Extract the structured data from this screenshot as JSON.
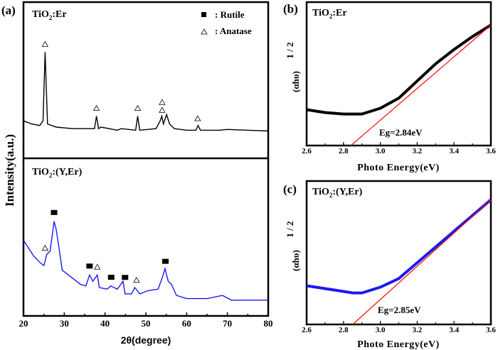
{
  "chart_data": [
    {
      "type": "line",
      "panel_label": "(a)",
      "xlabel": "2θ(degree)",
      "ylabel": "Intensity(a.u.)",
      "xlim": [
        20,
        80
      ],
      "xticks": [
        "20",
        "30",
        "40",
        "50",
        "60",
        "70",
        "80"
      ],
      "legend": {
        "position": "top-right",
        "entries": [
          {
            "symbol": "filled-square",
            "label": ": Rutile"
          },
          {
            "symbol": "open-triangle",
            "label": ": Anatase"
          }
        ]
      },
      "subplots": [
        {
          "name_main": "TiO",
          "name_sub": "2",
          "name_rest": ":Er",
          "color": "#000000",
          "points": [
            [
              20,
              0.24
            ],
            [
              22,
              0.22
            ],
            [
              24,
              0.21
            ],
            [
              24.8,
              0.24
            ],
            [
              25.1,
              0.5
            ],
            [
              25.3,
              0.68
            ],
            [
              25.6,
              0.45
            ],
            [
              25.9,
              0.22
            ],
            [
              28,
              0.2
            ],
            [
              32,
              0.19
            ],
            [
              37.4,
              0.19
            ],
            [
              37.9,
              0.27
            ],
            [
              38.4,
              0.19
            ],
            [
              39,
              0.2
            ],
            [
              43,
              0.18
            ],
            [
              44,
              0.19
            ],
            [
              47.5,
              0.18
            ],
            [
              48,
              0.27
            ],
            [
              48.5,
              0.18
            ],
            [
              52.5,
              0.19
            ],
            [
              53.5,
              0.24
            ],
            [
              53.9,
              0.27
            ],
            [
              54.3,
              0.22
            ],
            [
              55.1,
              0.28
            ],
            [
              55.8,
              0.22
            ],
            [
              57,
              0.19
            ],
            [
              60,
              0.18
            ],
            [
              62.3,
              0.18
            ],
            [
              62.8,
              0.21
            ],
            [
              63.4,
              0.18
            ],
            [
              68,
              0.18
            ],
            [
              70,
              0.185
            ],
            [
              75,
              0.18
            ],
            [
              80,
              0.175
            ]
          ],
          "anatase_markers": [
            25.3,
            37.9,
            48.0,
            54.0,
            54.0,
            62.7
          ],
          "rutile_markers": []
        },
        {
          "name_main": "TiO",
          "name_sub": "2",
          "name_rest": ":(Y,Er)",
          "color": "#1a1aee",
          "points": [
            [
              20,
              0.48
            ],
            [
              21,
              0.44
            ],
            [
              22.5,
              0.38
            ],
            [
              24,
              0.34
            ],
            [
              25,
              0.32
            ],
            [
              25.7,
              0.39
            ],
            [
              26.5,
              0.41
            ],
            [
              27.1,
              0.52
            ],
            [
              27.5,
              0.6
            ],
            [
              28,
              0.55
            ],
            [
              28.5,
              0.47
            ],
            [
              29.5,
              0.29
            ],
            [
              31,
              0.26
            ],
            [
              32.5,
              0.23
            ],
            [
              34,
              0.2
            ],
            [
              35.3,
              0.19
            ],
            [
              36.2,
              0.26
            ],
            [
              37,
              0.22
            ],
            [
              38.1,
              0.26
            ],
            [
              38.6,
              0.18
            ],
            [
              40.5,
              0.17
            ],
            [
              41.4,
              0.19
            ],
            [
              43,
              0.17
            ],
            [
              44.4,
              0.22
            ],
            [
              44.9,
              0.14
            ],
            [
              46.5,
              0.14
            ],
            [
              47.3,
              0.18
            ],
            [
              48.5,
              0.14
            ],
            [
              50.5,
              0.16
            ],
            [
              53,
              0.17
            ],
            [
              54,
              0.24
            ],
            [
              54.7,
              0.3
            ],
            [
              55.5,
              0.22
            ],
            [
              56.3,
              0.2
            ],
            [
              57.5,
              0.13
            ],
            [
              60,
              0.11
            ],
            [
              65,
              0.11
            ],
            [
              68.8,
              0.13
            ],
            [
              71,
              0.1
            ],
            [
              75,
              0.1
            ],
            [
              80,
              0.1
            ]
          ],
          "anatase_markers": [
            25.3,
            38.1,
            47.7
          ],
          "rutile_markers": [
            27.5,
            36.2,
            41.5,
            44.9,
            54.8
          ]
        }
      ]
    },
    {
      "type": "line",
      "panel_label": "(b)",
      "name_main": "TiO",
      "name_sub": "2",
      "name_rest": ":Er",
      "xlabel": "Photo Energy(eV)",
      "ylabel": "(αhυ)",
      "ylabel_sup": "1 / 2",
      "xlim": [
        2.6,
        3.6
      ],
      "xticks": [
        "2.6",
        "2.8",
        "3.0",
        "3.2",
        "3.4",
        "3.6"
      ],
      "annotation": "Eg=2.84eV",
      "curve_color": "#000000",
      "fit_color": "#ff0000",
      "curve": [
        [
          2.6,
          0.25
        ],
        [
          2.7,
          0.23
        ],
        [
          2.8,
          0.22
        ],
        [
          2.9,
          0.22
        ],
        [
          3.0,
          0.26
        ],
        [
          3.1,
          0.33
        ],
        [
          3.2,
          0.45
        ],
        [
          3.3,
          0.57
        ],
        [
          3.4,
          0.67
        ],
        [
          3.5,
          0.76
        ],
        [
          3.6,
          0.84
        ]
      ],
      "fit": [
        [
          2.84,
          0
        ],
        [
          3.6,
          0.84
        ]
      ]
    },
    {
      "type": "line",
      "panel_label": "(c)",
      "name_main": "TiO",
      "name_sub": "2",
      "name_rest": ":(Y,Er)",
      "xlabel": "Photo Energy(eV)",
      "ylabel": "(αhυ)",
      "ylabel_sup": "1 / 2",
      "xlim": [
        2.6,
        3.6
      ],
      "xticks": [
        "2.6",
        "2.8",
        "3.0",
        "3.2",
        "3.4",
        "3.6"
      ],
      "annotation": "Eg=2.85eV",
      "curve_color": "#1a1aee",
      "fit_color": "#ff0000",
      "curve": [
        [
          2.6,
          0.27
        ],
        [
          2.7,
          0.25
        ],
        [
          2.8,
          0.23
        ],
        [
          2.85,
          0.22
        ],
        [
          2.9,
          0.22
        ],
        [
          3.0,
          0.26
        ],
        [
          3.1,
          0.32
        ],
        [
          3.2,
          0.43
        ],
        [
          3.3,
          0.54
        ],
        [
          3.4,
          0.65
        ],
        [
          3.5,
          0.76
        ],
        [
          3.6,
          0.87
        ]
      ],
      "fit": [
        [
          2.85,
          0
        ],
        [
          3.6,
          0.87
        ]
      ]
    }
  ]
}
